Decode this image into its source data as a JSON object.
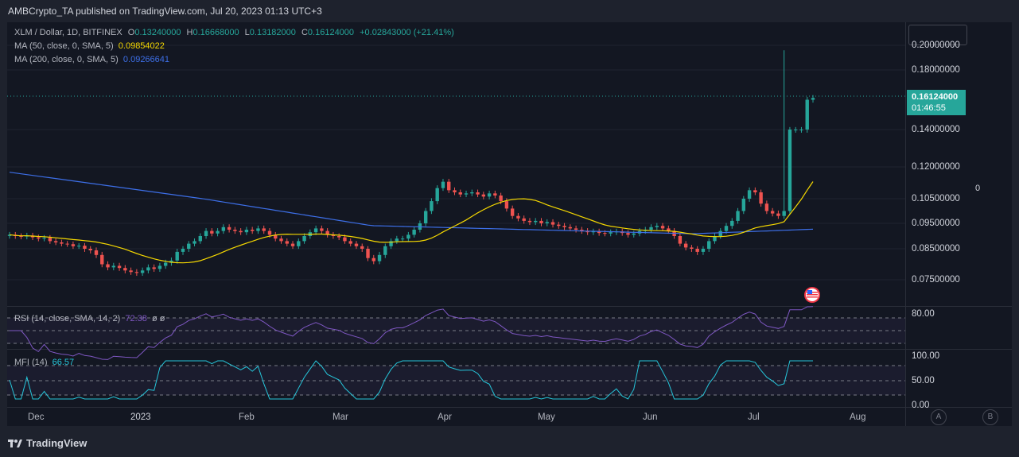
{
  "publisher_line": "AMBCrypto_TA published on TradingView.com, Jul 20, 2023 01:13 UTC+3",
  "symbol_line": {
    "name": "XLM / Dollar, 1D, BITFINEX",
    "o_label": "O",
    "o": "0.13240000",
    "h_label": "H",
    "h": "0.16668000",
    "l_label": "L",
    "l": "0.13182000",
    "c_label": "C",
    "c": "0.16124000",
    "change": "+0.02843000 (+21.41%)"
  },
  "ma50": {
    "label": "MA (50, close, 0, SMA, 5)",
    "value": "0.09854022"
  },
  "ma200": {
    "label": "MA (200, close, 0, SMA, 5)",
    "value": "0.09266641"
  },
  "rsi": {
    "label": "RSI (14, close, SMA, 14, 2)",
    "value": "72.38",
    "extra": "ø ø"
  },
  "mfi": {
    "label": "MFI (14)",
    "value": "66.57"
  },
  "price_axis": [
    "0.20000000",
    "0.18000000",
    "0.14000000",
    "0.12000000",
    "0.10500000",
    "0.09500000",
    "0.08500000",
    "0.07500000"
  ],
  "current_price": {
    "value": "0.16124000",
    "countdown": "01:46:55"
  },
  "rsi_axis": [
    "80.00"
  ],
  "mfi_axis": [
    "100.00",
    "50.00",
    "0.00"
  ],
  "x_axis": [
    "Dec",
    "2023",
    "Feb",
    "Mar",
    "Apr",
    "May",
    "Jun",
    "Jul",
    "Aug"
  ],
  "right_zero": "0",
  "scale_buttons": [
    "A",
    "B"
  ],
  "brand": "TradingView",
  "colors": {
    "up": "#26a69a",
    "down": "#ef5350",
    "ma50": "#f5d800",
    "ma200": "#3d6fe8",
    "rsi": "#7e57c2",
    "mfi": "#26c6da"
  },
  "chart_data": {
    "type": "candlestick",
    "x_range": [
      "Nov 2022",
      "Jul 19, 2023"
    ],
    "closes": [
      0.0905,
      0.09,
      0.0898,
      0.0902,
      0.0895,
      0.089,
      0.0893,
      0.088,
      0.0875,
      0.087,
      0.0868,
      0.086,
      0.0862,
      0.085,
      0.0845,
      0.083,
      0.08,
      0.079,
      0.0795,
      0.0788,
      0.078,
      0.0775,
      0.0772,
      0.078,
      0.079,
      0.0785,
      0.0795,
      0.0805,
      0.0812,
      0.084,
      0.085,
      0.087,
      0.088,
      0.09,
      0.092,
      0.091,
      0.092,
      0.0935,
      0.0925,
      0.092,
      0.0915,
      0.0925,
      0.092,
      0.093,
      0.092,
      0.0905,
      0.089,
      0.088,
      0.087,
      0.086,
      0.088,
      0.09,
      0.0915,
      0.093,
      0.092,
      0.0905,
      0.09,
      0.0895,
      0.088,
      0.087,
      0.086,
      0.085,
      0.082,
      0.081,
      0.083,
      0.086,
      0.088,
      0.089,
      0.089,
      0.0905,
      0.0925,
      0.095,
      0.1,
      0.104,
      0.11,
      0.113,
      0.109,
      0.108,
      0.107,
      0.1075,
      0.108,
      0.107,
      0.106,
      0.1075,
      0.1065,
      0.104,
      0.101,
      0.098,
      0.097,
      0.096,
      0.0955,
      0.096,
      0.095,
      0.0955,
      0.0945,
      0.094,
      0.0935,
      0.093,
      0.0925,
      0.092,
      0.0915,
      0.0918,
      0.0912,
      0.091,
      0.0915,
      0.0918,
      0.0912,
      0.0905,
      0.091,
      0.092,
      0.0925,
      0.0935,
      0.094,
      0.093,
      0.092,
      0.09,
      0.087,
      0.0855,
      0.085,
      0.084,
      0.085,
      0.088,
      0.09,
      0.092,
      0.094,
      0.096,
      0.1,
      0.105,
      0.109,
      0.108,
      0.103,
      0.1,
      0.099,
      0.098,
      0.1,
      0.14,
      0.14,
      0.14,
      0.16,
      0.1612
    ],
    "ma50_last": 0.09854022,
    "ma200_last": 0.09266641
  }
}
